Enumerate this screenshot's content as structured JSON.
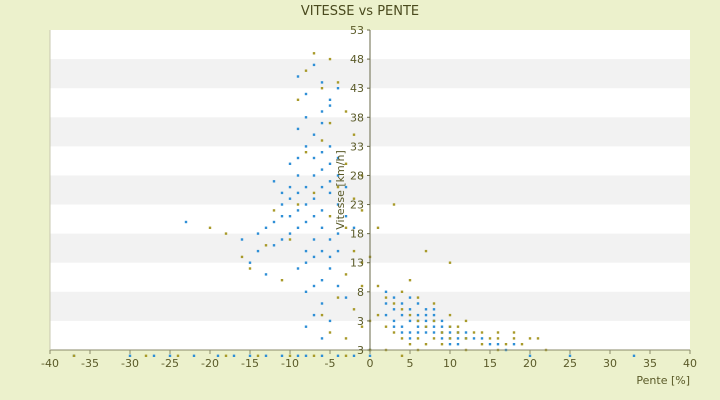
{
  "chart_data": {
    "type": "scatter",
    "title": "VITESSE vs PENTE",
    "xlabel": "Pente [%]",
    "ylabel": "Vitesse [km/h]",
    "xlim": [
      -40,
      40
    ],
    "ylim": [
      3,
      58
    ],
    "x_ticks": [
      -40,
      -35,
      -30,
      -25,
      -20,
      -15,
      -10,
      -5,
      0,
      5,
      10,
      15,
      20,
      25,
      30,
      35,
      40
    ],
    "y_tick_labels": [
      "3",
      "3",
      "8",
      "13",
      "18",
      "23",
      "28",
      "33",
      "38",
      "43",
      "48",
      "53"
    ],
    "grid": "horizontal alternating bands",
    "legend": "none",
    "colors": {
      "series_1": "#2e8fd6",
      "series_2": "#a89a2a",
      "background": "#ecf1cc",
      "band": "#f2f2f2"
    },
    "series": [
      {
        "color": "#2e8fd6",
        "points": [
          [
            -9,
            50
          ],
          [
            -8,
            47
          ],
          [
            -7,
            52
          ],
          [
            -6,
            49
          ],
          [
            -5,
            45
          ],
          [
            -6,
            42
          ],
          [
            -7,
            40
          ],
          [
            -8,
            38
          ],
          [
            -9,
            36
          ],
          [
            -10,
            35
          ],
          [
            -5,
            38
          ],
          [
            -4,
            36
          ],
          [
            -6,
            34
          ],
          [
            -7,
            33
          ],
          [
            -8,
            31
          ],
          [
            -9,
            30
          ],
          [
            -10,
            29
          ],
          [
            -11,
            28
          ],
          [
            -5,
            30
          ],
          [
            -4,
            28
          ],
          [
            -6,
            27
          ],
          [
            -7,
            26
          ],
          [
            -8,
            25
          ],
          [
            -9,
            24
          ],
          [
            -10,
            23
          ],
          [
            -11,
            22
          ],
          [
            -12,
            21
          ],
          [
            -6,
            24
          ],
          [
            -5,
            22
          ],
          [
            -4,
            20
          ],
          [
            -7,
            19
          ],
          [
            -8,
            18
          ],
          [
            -9,
            17
          ],
          [
            -5,
            17
          ],
          [
            -6,
            15
          ],
          [
            -7,
            14
          ],
          [
            -8,
            13
          ],
          [
            -4,
            14
          ],
          [
            -3,
            12
          ],
          [
            -6,
            11
          ],
          [
            -7,
            9
          ],
          [
            -8,
            7
          ],
          [
            -5,
            8
          ],
          [
            -6,
            5
          ],
          [
            -9,
            33
          ],
          [
            -10,
            31
          ],
          [
            -11,
            26
          ],
          [
            -12,
            25
          ],
          [
            -13,
            24
          ],
          [
            -14,
            23
          ],
          [
            -8,
            43
          ],
          [
            -9,
            41
          ],
          [
            -6,
            44
          ],
          [
            -5,
            46
          ],
          [
            -4,
            48
          ],
          [
            -7,
            36
          ],
          [
            -6,
            37
          ],
          [
            -5,
            35
          ],
          [
            -4,
            33
          ],
          [
            -3,
            31
          ],
          [
            -9,
            27
          ],
          [
            -8,
            28
          ],
          [
            -7,
            29
          ],
          [
            -6,
            31
          ],
          [
            -5,
            32
          ],
          [
            -10,
            26
          ],
          [
            -11,
            30
          ],
          [
            -12,
            32
          ],
          [
            -3,
            26
          ],
          [
            -2,
            24
          ],
          [
            -23,
            25
          ],
          [
            -15,
            18
          ],
          [
            -14,
            20
          ],
          [
            -16,
            22
          ],
          [
            -13,
            16
          ],
          [
            -8,
            20
          ],
          [
            -7,
            22
          ],
          [
            -6,
            20
          ],
          [
            -5,
            19
          ],
          [
            -4,
            23
          ],
          [
            2,
            11
          ],
          [
            3,
            10
          ],
          [
            4,
            9
          ],
          [
            5,
            8
          ],
          [
            6,
            7
          ],
          [
            7,
            6
          ],
          [
            8,
            6
          ],
          [
            9,
            5
          ],
          [
            10,
            5
          ],
          [
            11,
            4
          ],
          [
            3,
            8
          ],
          [
            4,
            7
          ],
          [
            5,
            6
          ],
          [
            6,
            6
          ],
          [
            7,
            7
          ],
          [
            8,
            8
          ],
          [
            9,
            7
          ],
          [
            10,
            6
          ],
          [
            11,
            6
          ],
          [
            12,
            5
          ],
          [
            4,
            11
          ],
          [
            5,
            10
          ],
          [
            6,
            9
          ],
          [
            7,
            8
          ],
          [
            8,
            7
          ],
          [
            9,
            6
          ],
          [
            10,
            7
          ],
          [
            11,
            5
          ],
          [
            12,
            6
          ],
          [
            13,
            5
          ],
          [
            2,
            9
          ],
          [
            3,
            7
          ],
          [
            4,
            6
          ],
          [
            5,
            5
          ],
          [
            6,
            8
          ],
          [
            7,
            9
          ],
          [
            8,
            10
          ],
          [
            9,
            8
          ],
          [
            10,
            4
          ],
          [
            14,
            5
          ],
          [
            15,
            4
          ],
          [
            16,
            4
          ],
          [
            17,
            3
          ],
          [
            18,
            4
          ],
          [
            5,
            12
          ],
          [
            6,
            11
          ],
          [
            7,
            10
          ],
          [
            8,
            9
          ],
          [
            2,
            13
          ],
          [
            3,
            12
          ],
          [
            -37,
            2
          ],
          [
            -30,
            2
          ],
          [
            -27,
            2
          ],
          [
            -25,
            2
          ],
          [
            -22,
            2
          ],
          [
            -19,
            2
          ],
          [
            -17,
            2
          ],
          [
            -13,
            2
          ],
          [
            -11,
            2
          ],
          [
            -8,
            2
          ],
          [
            -6,
            2
          ],
          [
            -4,
            2
          ],
          [
            0,
            2
          ],
          [
            0,
            3
          ],
          [
            20,
            2
          ],
          [
            25,
            2
          ],
          [
            33,
            2
          ],
          [
            -2,
            2
          ],
          [
            -9,
            2
          ],
          [
            -15,
            2
          ]
        ]
      },
      {
        "color": "#a89a2a",
        "points": [
          [
            -7,
            54
          ],
          [
            -5,
            53
          ],
          [
            -8,
            51
          ],
          [
            -4,
            49
          ],
          [
            -6,
            48
          ],
          [
            -9,
            46
          ],
          [
            -3,
            44
          ],
          [
            -5,
            42
          ],
          [
            -2,
            40
          ],
          [
            -6,
            39
          ],
          [
            -8,
            37
          ],
          [
            -3,
            35
          ],
          [
            -1,
            33
          ],
          [
            -4,
            31
          ],
          [
            -7,
            30
          ],
          [
            -9,
            28
          ],
          [
            -12,
            27
          ],
          [
            -2,
            29
          ],
          [
            -5,
            26
          ],
          [
            -1,
            27
          ],
          [
            -3,
            24
          ],
          [
            -10,
            22
          ],
          [
            -13,
            21
          ],
          [
            -18,
            23
          ],
          [
            -20,
            24
          ],
          [
            -16,
            19
          ],
          [
            -15,
            17
          ],
          [
            -11,
            15
          ],
          [
            -2,
            20
          ],
          [
            -1,
            18
          ],
          [
            0,
            19
          ],
          [
            -3,
            16
          ],
          [
            -1,
            14
          ],
          [
            -4,
            12
          ],
          [
            -2,
            10
          ],
          [
            -6,
            9
          ],
          [
            -5,
            6
          ],
          [
            -3,
            5
          ],
          [
            -1,
            7
          ],
          [
            0,
            8
          ],
          [
            1,
            14
          ],
          [
            2,
            12
          ],
          [
            3,
            11
          ],
          [
            4,
            10
          ],
          [
            5,
            9
          ],
          [
            6,
            8
          ],
          [
            7,
            7
          ],
          [
            8,
            8
          ],
          [
            9,
            6
          ],
          [
            10,
            7
          ],
          [
            11,
            6
          ],
          [
            12,
            5
          ],
          [
            13,
            6
          ],
          [
            14,
            4
          ],
          [
            15,
            5
          ],
          [
            16,
            5
          ],
          [
            17,
            4
          ],
          [
            18,
            5
          ],
          [
            19,
            4
          ],
          [
            20,
            5
          ],
          [
            21,
            5
          ],
          [
            3,
            6
          ],
          [
            4,
            5
          ],
          [
            5,
            4
          ],
          [
            6,
            5
          ],
          [
            7,
            4
          ],
          [
            8,
            5
          ],
          [
            9,
            4
          ],
          [
            10,
            5
          ],
          [
            11,
            7
          ],
          [
            2,
            7
          ],
          [
            1,
            9
          ],
          [
            4,
            13
          ],
          [
            6,
            12
          ],
          [
            8,
            11
          ],
          [
            10,
            9
          ],
          [
            12,
            8
          ],
          [
            14,
            6
          ],
          [
            16,
            6
          ],
          [
            18,
            6
          ],
          [
            3,
            28
          ],
          [
            1,
            24
          ],
          [
            10,
            18
          ],
          [
            7,
            20
          ],
          [
            5,
            15
          ],
          [
            -37,
            2
          ],
          [
            -28,
            2
          ],
          [
            -18,
            2
          ],
          [
            -10,
            2
          ],
          [
            -3,
            2
          ],
          [
            0,
            3
          ],
          [
            2,
            3
          ],
          [
            6,
            3
          ],
          [
            12,
            3
          ],
          [
            16,
            3
          ],
          [
            22,
            3
          ],
          [
            -24,
            2
          ],
          [
            -14,
            2
          ],
          [
            -7,
            2
          ],
          [
            4,
            2
          ]
        ]
      }
    ]
  }
}
